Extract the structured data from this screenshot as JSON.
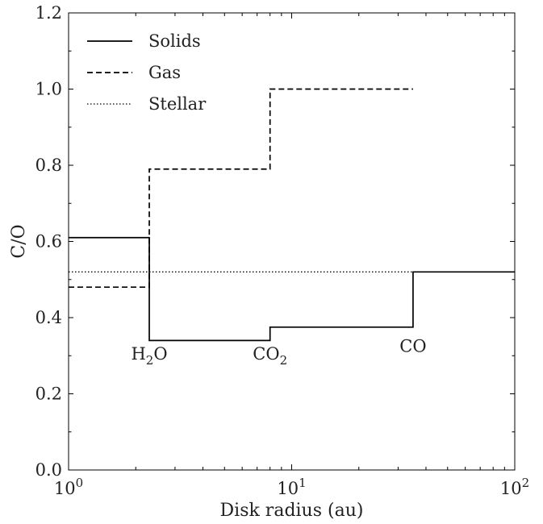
{
  "chart_data": {
    "type": "line",
    "xlabel": "Disk radius (au)",
    "ylabel": "C/O",
    "xscale": "log",
    "xlim": [
      1,
      100
    ],
    "ylim": [
      0.0,
      1.2
    ],
    "grid": false,
    "legend_position": "top-left",
    "x_ticks": [
      {
        "value": 1,
        "base": "10",
        "exp": "0"
      },
      {
        "value": 10,
        "base": "10",
        "exp": "1"
      },
      {
        "value": 100,
        "base": "10",
        "exp": "2"
      }
    ],
    "y_ticks": [
      {
        "value": 0.0,
        "label": "0.0"
      },
      {
        "value": 0.2,
        "label": "0.2"
      },
      {
        "value": 0.4,
        "label": "0.4"
      },
      {
        "value": 0.6,
        "label": "0.6"
      },
      {
        "value": 0.8,
        "label": "0.8"
      },
      {
        "value": 1.0,
        "label": "1.0"
      },
      {
        "value": 1.2,
        "label": "1.2"
      }
    ],
    "series": [
      {
        "name": "Solids",
        "style": "solid",
        "x": [
          1,
          2.3,
          2.3,
          8.0,
          8.0,
          35.0,
          35.0,
          100
        ],
        "y": [
          0.61,
          0.61,
          0.34,
          0.34,
          0.375,
          0.375,
          0.52,
          0.52
        ]
      },
      {
        "name": "Gas",
        "style": "dashed",
        "x": [
          1,
          2.3,
          2.3,
          8.0,
          8.0,
          35.0
        ],
        "y": [
          0.48,
          0.48,
          0.79,
          0.79,
          1.0,
          1.0
        ]
      },
      {
        "name": "Stellar",
        "style": "dotted",
        "x": [
          1,
          100
        ],
        "y": [
          0.52,
          0.52
        ]
      }
    ],
    "annotations": [
      {
        "x": 2.3,
        "y": 0.29,
        "base": "H",
        "sub": "2",
        "tail": "O"
      },
      {
        "x": 8.0,
        "y": 0.29,
        "base": "CO",
        "sub": "2",
        "tail": ""
      },
      {
        "x": 35.0,
        "y": 0.31,
        "base": "CO",
        "sub": "",
        "tail": ""
      }
    ]
  }
}
